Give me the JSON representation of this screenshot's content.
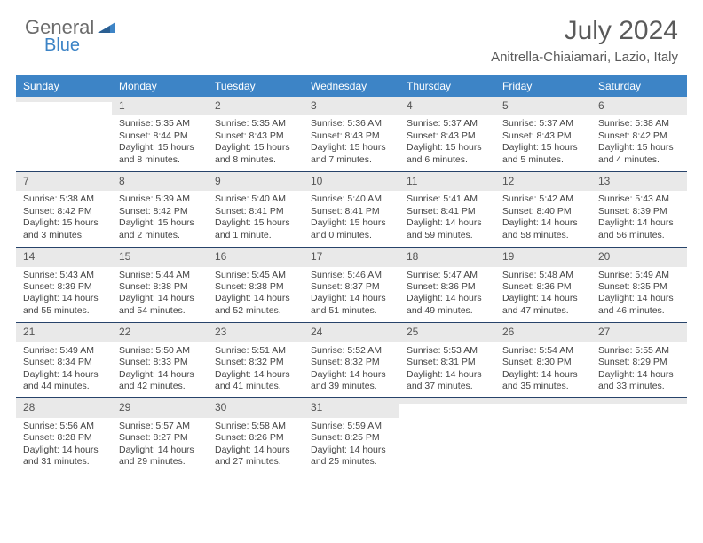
{
  "logo": {
    "text1": "General",
    "text2": "Blue"
  },
  "title": "July 2024",
  "location": "Anitrella-Chiaiamari, Lazio, Italy",
  "colors": {
    "header_bg": "#3d84c6",
    "header_text": "#ffffff",
    "daynum_bg": "#e9e9e9",
    "week_border": "#27436a",
    "text": "#444444",
    "title_text": "#5a5a5a"
  },
  "dow": [
    "Sunday",
    "Monday",
    "Tuesday",
    "Wednesday",
    "Thursday",
    "Friday",
    "Saturday"
  ],
  "weeks": [
    [
      {
        "n": "",
        "sr": "",
        "ss": "",
        "dl": ""
      },
      {
        "n": "1",
        "sr": "Sunrise: 5:35 AM",
        "ss": "Sunset: 8:44 PM",
        "dl": "Daylight: 15 hours and 8 minutes."
      },
      {
        "n": "2",
        "sr": "Sunrise: 5:35 AM",
        "ss": "Sunset: 8:43 PM",
        "dl": "Daylight: 15 hours and 8 minutes."
      },
      {
        "n": "3",
        "sr": "Sunrise: 5:36 AM",
        "ss": "Sunset: 8:43 PM",
        "dl": "Daylight: 15 hours and 7 minutes."
      },
      {
        "n": "4",
        "sr": "Sunrise: 5:37 AM",
        "ss": "Sunset: 8:43 PM",
        "dl": "Daylight: 15 hours and 6 minutes."
      },
      {
        "n": "5",
        "sr": "Sunrise: 5:37 AM",
        "ss": "Sunset: 8:43 PM",
        "dl": "Daylight: 15 hours and 5 minutes."
      },
      {
        "n": "6",
        "sr": "Sunrise: 5:38 AM",
        "ss": "Sunset: 8:42 PM",
        "dl": "Daylight: 15 hours and 4 minutes."
      }
    ],
    [
      {
        "n": "7",
        "sr": "Sunrise: 5:38 AM",
        "ss": "Sunset: 8:42 PM",
        "dl": "Daylight: 15 hours and 3 minutes."
      },
      {
        "n": "8",
        "sr": "Sunrise: 5:39 AM",
        "ss": "Sunset: 8:42 PM",
        "dl": "Daylight: 15 hours and 2 minutes."
      },
      {
        "n": "9",
        "sr": "Sunrise: 5:40 AM",
        "ss": "Sunset: 8:41 PM",
        "dl": "Daylight: 15 hours and 1 minute."
      },
      {
        "n": "10",
        "sr": "Sunrise: 5:40 AM",
        "ss": "Sunset: 8:41 PM",
        "dl": "Daylight: 15 hours and 0 minutes."
      },
      {
        "n": "11",
        "sr": "Sunrise: 5:41 AM",
        "ss": "Sunset: 8:41 PM",
        "dl": "Daylight: 14 hours and 59 minutes."
      },
      {
        "n": "12",
        "sr": "Sunrise: 5:42 AM",
        "ss": "Sunset: 8:40 PM",
        "dl": "Daylight: 14 hours and 58 minutes."
      },
      {
        "n": "13",
        "sr": "Sunrise: 5:43 AM",
        "ss": "Sunset: 8:39 PM",
        "dl": "Daylight: 14 hours and 56 minutes."
      }
    ],
    [
      {
        "n": "14",
        "sr": "Sunrise: 5:43 AM",
        "ss": "Sunset: 8:39 PM",
        "dl": "Daylight: 14 hours and 55 minutes."
      },
      {
        "n": "15",
        "sr": "Sunrise: 5:44 AM",
        "ss": "Sunset: 8:38 PM",
        "dl": "Daylight: 14 hours and 54 minutes."
      },
      {
        "n": "16",
        "sr": "Sunrise: 5:45 AM",
        "ss": "Sunset: 8:38 PM",
        "dl": "Daylight: 14 hours and 52 minutes."
      },
      {
        "n": "17",
        "sr": "Sunrise: 5:46 AM",
        "ss": "Sunset: 8:37 PM",
        "dl": "Daylight: 14 hours and 51 minutes."
      },
      {
        "n": "18",
        "sr": "Sunrise: 5:47 AM",
        "ss": "Sunset: 8:36 PM",
        "dl": "Daylight: 14 hours and 49 minutes."
      },
      {
        "n": "19",
        "sr": "Sunrise: 5:48 AM",
        "ss": "Sunset: 8:36 PM",
        "dl": "Daylight: 14 hours and 47 minutes."
      },
      {
        "n": "20",
        "sr": "Sunrise: 5:49 AM",
        "ss": "Sunset: 8:35 PM",
        "dl": "Daylight: 14 hours and 46 minutes."
      }
    ],
    [
      {
        "n": "21",
        "sr": "Sunrise: 5:49 AM",
        "ss": "Sunset: 8:34 PM",
        "dl": "Daylight: 14 hours and 44 minutes."
      },
      {
        "n": "22",
        "sr": "Sunrise: 5:50 AM",
        "ss": "Sunset: 8:33 PM",
        "dl": "Daylight: 14 hours and 42 minutes."
      },
      {
        "n": "23",
        "sr": "Sunrise: 5:51 AM",
        "ss": "Sunset: 8:32 PM",
        "dl": "Daylight: 14 hours and 41 minutes."
      },
      {
        "n": "24",
        "sr": "Sunrise: 5:52 AM",
        "ss": "Sunset: 8:32 PM",
        "dl": "Daylight: 14 hours and 39 minutes."
      },
      {
        "n": "25",
        "sr": "Sunrise: 5:53 AM",
        "ss": "Sunset: 8:31 PM",
        "dl": "Daylight: 14 hours and 37 minutes."
      },
      {
        "n": "26",
        "sr": "Sunrise: 5:54 AM",
        "ss": "Sunset: 8:30 PM",
        "dl": "Daylight: 14 hours and 35 minutes."
      },
      {
        "n": "27",
        "sr": "Sunrise: 5:55 AM",
        "ss": "Sunset: 8:29 PM",
        "dl": "Daylight: 14 hours and 33 minutes."
      }
    ],
    [
      {
        "n": "28",
        "sr": "Sunrise: 5:56 AM",
        "ss": "Sunset: 8:28 PM",
        "dl": "Daylight: 14 hours and 31 minutes."
      },
      {
        "n": "29",
        "sr": "Sunrise: 5:57 AM",
        "ss": "Sunset: 8:27 PM",
        "dl": "Daylight: 14 hours and 29 minutes."
      },
      {
        "n": "30",
        "sr": "Sunrise: 5:58 AM",
        "ss": "Sunset: 8:26 PM",
        "dl": "Daylight: 14 hours and 27 minutes."
      },
      {
        "n": "31",
        "sr": "Sunrise: 5:59 AM",
        "ss": "Sunset: 8:25 PM",
        "dl": "Daylight: 14 hours and 25 minutes."
      },
      {
        "n": "",
        "sr": "",
        "ss": "",
        "dl": ""
      },
      {
        "n": "",
        "sr": "",
        "ss": "",
        "dl": ""
      },
      {
        "n": "",
        "sr": "",
        "ss": "",
        "dl": ""
      }
    ]
  ]
}
